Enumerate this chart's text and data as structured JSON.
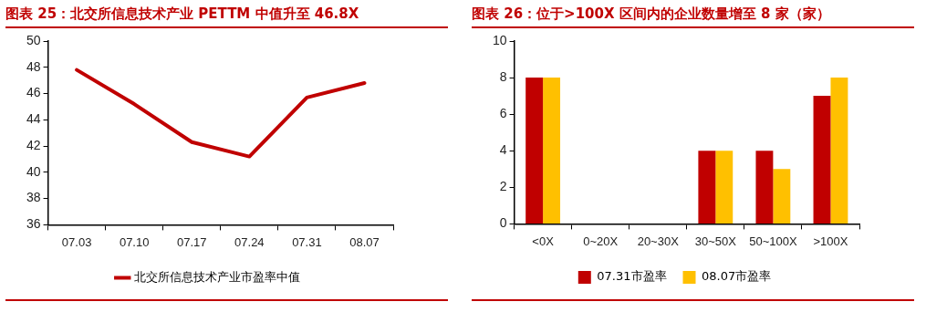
{
  "chart_data": [
    {
      "type": "line",
      "title": "图表 25：北交所信息技术产业 PETTM 中值升至 46.8X",
      "categories": [
        "07.03",
        "07.10",
        "07.17",
        "07.24",
        "07.31",
        "08.07"
      ],
      "series": [
        {
          "name": "北交所信息技术产业市盈率中值",
          "color": "#c00000",
          "values": [
            47.8,
            45.2,
            42.3,
            41.2,
            45.7,
            46.8
          ]
        }
      ],
      "ylim": [
        36,
        50
      ],
      "yticks": [
        36,
        38,
        40,
        42,
        44,
        46,
        48,
        50
      ],
      "grid": false,
      "legend": "bottom",
      "marker": "none",
      "line_style": "solid"
    },
    {
      "type": "bar",
      "title": "图表 26：位于>100X 区间内的企业数量增至 8 家（家）",
      "categories": [
        "<0X",
        "0~20X",
        "20~30X",
        "30~50X",
        "50~100X",
        ">100X"
      ],
      "series": [
        {
          "name": "07.31市盈率",
          "color": "#c00000",
          "values": [
            8,
            0,
            0,
            4,
            4,
            7
          ]
        },
        {
          "name": "08.07市盈率",
          "color": "#ffc000",
          "values": [
            8,
            0,
            0,
            4,
            3,
            8
          ]
        }
      ],
      "ylim": [
        0,
        10
      ],
      "yticks": [
        0,
        2,
        4,
        6,
        8,
        10
      ],
      "grid": false,
      "legend": "bottom"
    }
  ]
}
